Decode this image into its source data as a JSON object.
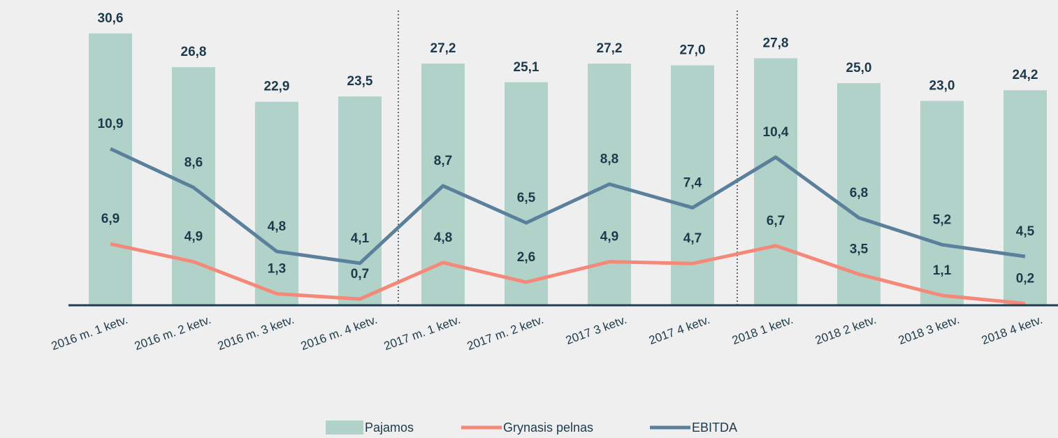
{
  "chart_data": {
    "type": "bar",
    "categories": [
      "2016 m. 1 ketv.",
      "2016 m. 2 ketv.",
      "2016 m. 3 ketv.",
      "2016 m. 4 ketv.",
      "2017 m. 1 ketv.",
      "2017 m. 2 ketv.",
      "2017 3 ketv.",
      "2017 4 ketv.",
      "2018 1 ketv.",
      "2018 2 ketv.",
      "2018 3 ketv.",
      "2018 4 ketv."
    ],
    "ylim": [
      0,
      32
    ],
    "y2lim": [
      1.6,
      18.5
    ],
    "series": [
      {
        "name": "Pajamos",
        "type": "bar",
        "color": "#b0d2c9",
        "values": [
          30.6,
          26.8,
          22.9,
          23.5,
          27.2,
          25.1,
          27.2,
          27.0,
          27.8,
          25.0,
          23.0,
          24.2
        ],
        "value_labels": [
          "30,6",
          "26,8",
          "22,9",
          "23,5",
          "27,2",
          "25,1",
          "27,2",
          "27,0",
          "27,8",
          "25,0",
          "23,0",
          "24,2"
        ]
      },
      {
        "name": "Grynasis pelnas",
        "type": "line",
        "color": "#f4897a",
        "values": [
          6.9,
          4.9,
          1.3,
          0.7,
          4.8,
          2.6,
          4.9,
          4.7,
          6.7,
          3.5,
          1.1,
          0.2
        ],
        "value_labels": [
          "6,9",
          "4,9",
          "1,3",
          "0,7",
          "4,8",
          "2,6",
          "4,9",
          "4,7",
          "6,7",
          "3,5",
          "1,1",
          "0,2"
        ]
      },
      {
        "name": "EBITDA",
        "type": "line",
        "axis": "y2",
        "color": "#5b809b",
        "values": [
          10.9,
          8.6,
          4.8,
          4.1,
          8.7,
          6.5,
          8.8,
          7.4,
          10.4,
          6.8,
          5.2,
          4.5
        ],
        "value_labels": [
          "10,9",
          "8,6",
          "4,8",
          "4,1",
          "8,7",
          "6,5",
          "8,8",
          "7,4",
          "10,4",
          "6,8",
          "5,2",
          "4,5"
        ]
      }
    ]
  }
}
